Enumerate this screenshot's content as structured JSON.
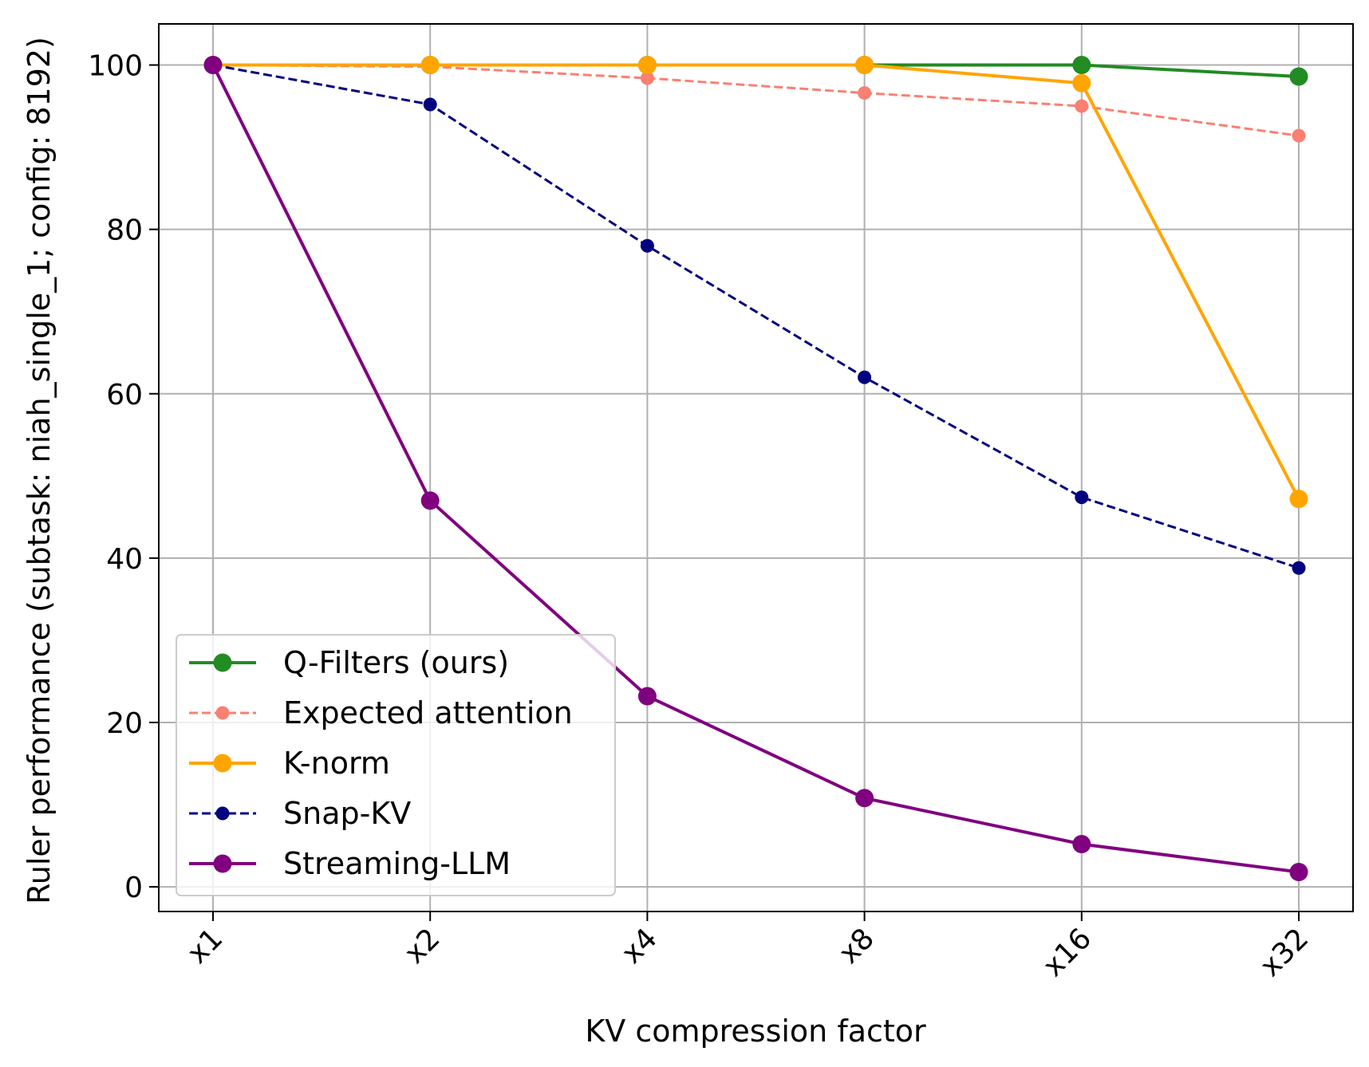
{
  "chart_data": {
    "type": "line",
    "xlabel": "KV compression factor",
    "ylabel": "Ruler performance (subtask: niah_single_1; config: 8192)",
    "categories": [
      "x1",
      "x2",
      "x4",
      "x8",
      "x16",
      "x32"
    ],
    "category_positions": [
      1,
      2,
      4,
      8,
      16,
      32
    ],
    "x_scale": "log2",
    "ylim": [
      -3,
      105
    ],
    "yticks": [
      0,
      20,
      40,
      60,
      80,
      100
    ],
    "grid": true,
    "legend_position": "lower-left",
    "series": [
      {
        "name": "Q-Filters (ours)",
        "color": "#228b22",
        "dash": "solid",
        "marker": "large",
        "values": [
          100,
          100,
          100,
          100,
          100,
          98.6
        ]
      },
      {
        "name": "Expected attention",
        "color": "#fa8072",
        "dash": "dashed",
        "marker": "small",
        "values": [
          100,
          99.8,
          98.4,
          96.6,
          95.0,
          91.4
        ]
      },
      {
        "name": "K-norm",
        "color": "#ffa500",
        "dash": "solid",
        "marker": "large",
        "values": [
          100,
          100,
          100,
          100,
          97.8,
          47.2
        ]
      },
      {
        "name": "Snap-KV",
        "color": "#000080",
        "dash": "dashed",
        "marker": "small",
        "values": [
          100,
          95.2,
          78.0,
          62.0,
          47.4,
          38.8
        ]
      },
      {
        "name": "Streaming-LLM",
        "color": "#800080",
        "dash": "solid",
        "marker": "large",
        "values": [
          100,
          47.0,
          23.2,
          10.8,
          5.2,
          1.8
        ]
      }
    ]
  }
}
